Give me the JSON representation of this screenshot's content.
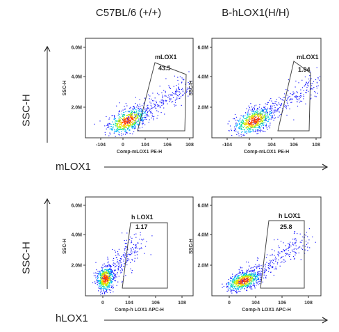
{
  "column_titles": [
    "C57BL/6 (+/+)",
    "B-hLOX1(H/H)"
  ],
  "row_labels": [
    "SSC-H",
    "SSC-H"
  ],
  "param_labels": [
    "mLOX1",
    "hLOX1"
  ],
  "chart_data": [
    {
      "type": "scatter",
      "title": "C57BL/6 (+/+)",
      "xlabel": "Comp-mLOX1 PE-H",
      "ylabel": "SSC-H",
      "x_ticks": [
        "-10^4",
        "0",
        "10^4",
        "10^6",
        "10^8"
      ],
      "y_ticks": [
        "2.0M",
        "4.0M",
        "6.0M"
      ],
      "gate": {
        "name": "mLOX1",
        "percent": "43.5"
      }
    },
    {
      "type": "scatter",
      "title": "B-hLOX1(H/H)",
      "xlabel": "Comp-mLOX1 PE-H",
      "ylabel": "SSC-H",
      "x_ticks": [
        "-10^4",
        "0",
        "10^4",
        "10^6",
        "10^8"
      ],
      "y_ticks": [
        "2.0M",
        "4.0M",
        "6.0M"
      ],
      "gate": {
        "name": "mLOX1",
        "percent": "1.94"
      }
    },
    {
      "type": "scatter",
      "title": "C57BL/6 (+/+)",
      "xlabel": "Comp-h LOX1 APC-H",
      "ylabel": "SSC-H",
      "x_ticks": [
        "0",
        "10^4",
        "10^6",
        "10^8"
      ],
      "y_ticks": [
        "2.0M",
        "4.0M",
        "6.0M"
      ],
      "gate": {
        "name": "h LOX1",
        "percent": "1.17"
      }
    },
    {
      "type": "scatter",
      "title": "B-hLOX1(H/H)",
      "xlabel": "Comp-h LOX1 APC-H",
      "ylabel": "SSC-H",
      "x_ticks": [
        "0",
        "10^4",
        "10^6",
        "10^8"
      ],
      "y_ticks": [
        "2.0M",
        "4.0M",
        "6.0M"
      ],
      "gate": {
        "name": "h LOX1",
        "percent": "25.8"
      }
    }
  ]
}
